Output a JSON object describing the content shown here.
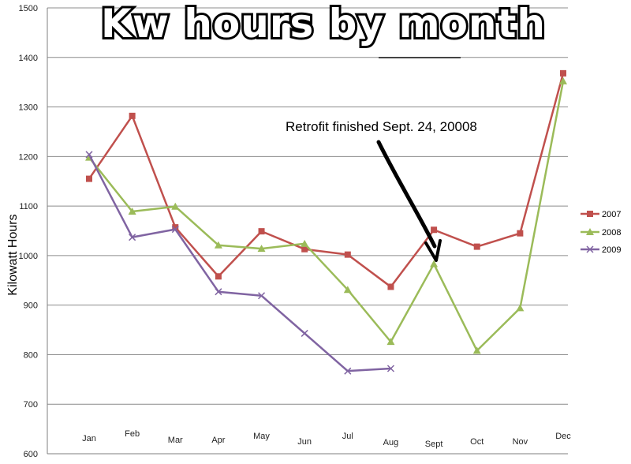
{
  "chart_data": {
    "type": "line",
    "title": "Kw hours by month",
    "xlabel": "",
    "ylabel": "Kilowatt Hours",
    "ylim": [
      600,
      1500
    ],
    "yticks": [
      "600",
      "700",
      "800",
      "900",
      "1000",
      "1100",
      "1200",
      "1300",
      "1400",
      "1500"
    ],
    "grid": true,
    "legend_position": "right",
    "categories": [
      "Jan",
      "Feb",
      "Mar",
      "Apr",
      "May",
      "Jun",
      "Jul",
      "Aug",
      "Sept",
      "Oct",
      "Nov",
      "Dec"
    ],
    "series": [
      {
        "name": "2007",
        "color": "#c0504d",
        "marker": "square",
        "values": [
          1155,
          1282,
          1057,
          958,
          1049,
          1013,
          1002,
          937,
          1052,
          1018,
          1045,
          1368
        ]
      },
      {
        "name": "2008",
        "color": "#9bbb59",
        "marker": "triangle",
        "values": [
          1198,
          1089,
          1099,
          1021,
          1014,
          1024,
          931,
          826,
          983,
          808,
          894,
          1352
        ]
      },
      {
        "name": "2009",
        "color": "#8064a2",
        "marker": "x",
        "values": [
          1204,
          1037,
          1053,
          927,
          919,
          843,
          767,
          772,
          null,
          null,
          null,
          null
        ]
      }
    ],
    "annotations": [
      {
        "text": "Retrofit finished Sept. 24, 20008",
        "points_to": "Sept"
      }
    ]
  }
}
